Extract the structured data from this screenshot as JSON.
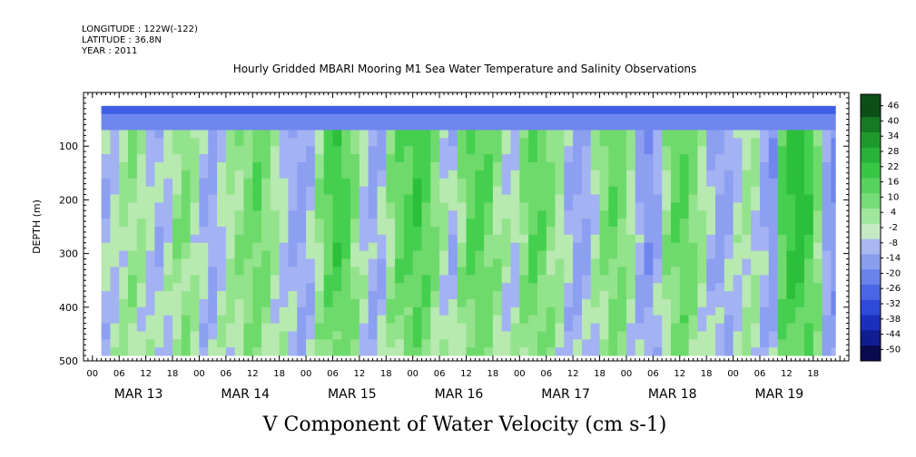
{
  "header": {
    "lines": [
      "LONGITUDE : 122W(-122)",
      "LATITUDE : 36.8N",
      "YEAR : 2011"
    ]
  },
  "chart_data": {
    "type": "heatmap",
    "title": "Hourly Gridded MBARI Mooring M1 Sea Water Temperature and Salinity Observations",
    "xlabel": "V Component of Water Velocity (cm s-1)",
    "ylabel": "DEPTH (m)",
    "ylim": [
      0,
      500
    ],
    "y_inverted": true,
    "yticks": [
      100,
      200,
      300,
      400,
      500
    ],
    "xlim_hours": [
      0,
      168
    ],
    "hour_ticks": [
      "00",
      "06",
      "12",
      "18",
      "00",
      "06",
      "12",
      "18",
      "00",
      "06",
      "12",
      "18",
      "00",
      "06",
      "12",
      "18",
      "00",
      "06",
      "12",
      "18",
      "00",
      "06",
      "12",
      "18",
      "00",
      "06",
      "12",
      "18"
    ],
    "day_labels": [
      "MAR 13",
      "MAR 14",
      "MAR 15",
      "MAR 16",
      "MAR 17",
      "MAR 18",
      "MAR 19"
    ],
    "colorbar": {
      "labels": [
        "46",
        "40",
        "34",
        "28",
        "22",
        "16",
        "10",
        "4",
        "-2",
        "-8",
        "-14",
        "-20",
        "-26",
        "-32",
        "-38",
        "-44",
        "-50"
      ],
      "levels": [
        52,
        49,
        46,
        43,
        40,
        37,
        34,
        31,
        28,
        25,
        22,
        19,
        16,
        13,
        10,
        7,
        4,
        1,
        -2,
        -5,
        -8,
        -11,
        -14,
        -17,
        -20,
        -23,
        -26,
        -29,
        -32,
        -35,
        -38,
        -41,
        -44,
        -47,
        -50
      ],
      "high_color": "#0a4a12",
      "low_color": "#0a0a50"
    },
    "data_extent": {
      "start_hour": 2,
      "end_hour": 167,
      "top_depth": 25,
      "bottom_depth": 485
    },
    "description_columns_hours": [
      2,
      4,
      6,
      8,
      10,
      12,
      14,
      16,
      18,
      20,
      22,
      24,
      26,
      28,
      30,
      32,
      34,
      36,
      38,
      40,
      42,
      44,
      46,
      48,
      50,
      52,
      54,
      56,
      58,
      60,
      62,
      64,
      66,
      68,
      70,
      72,
      74,
      76,
      78,
      80,
      82,
      84,
      86,
      88,
      90,
      92,
      94,
      96,
      98,
      100,
      102,
      104,
      106,
      108,
      110,
      112,
      114,
      116,
      118,
      120,
      122,
      124,
      126,
      128,
      130,
      132,
      134,
      136,
      138,
      140,
      142,
      144,
      146,
      148,
      150,
      152,
      154,
      156,
      158,
      160,
      162,
      164,
      166
    ],
    "column_mean_velocity": [
      -4,
      -2,
      2,
      4,
      2,
      -2,
      -4,
      -2,
      4,
      6,
      2,
      -4,
      -6,
      -2,
      2,
      4,
      8,
      10,
      6,
      2,
      -2,
      -6,
      -8,
      -4,
      4,
      12,
      16,
      14,
      6,
      -2,
      -6,
      -4,
      4,
      10,
      14,
      16,
      12,
      6,
      0,
      -4,
      4,
      12,
      14,
      10,
      4,
      0,
      -2,
      6,
      12,
      10,
      6,
      2,
      -4,
      -8,
      -6,
      0,
      6,
      10,
      8,
      2,
      -6,
      -10,
      -6,
      4,
      10,
      12,
      8,
      2,
      -4,
      -8,
      -6,
      -2,
      2,
      0,
      -6,
      -10,
      14,
      20,
      22,
      16,
      6,
      -8,
      -12
    ],
    "surface_layer_velocity": -24
  }
}
